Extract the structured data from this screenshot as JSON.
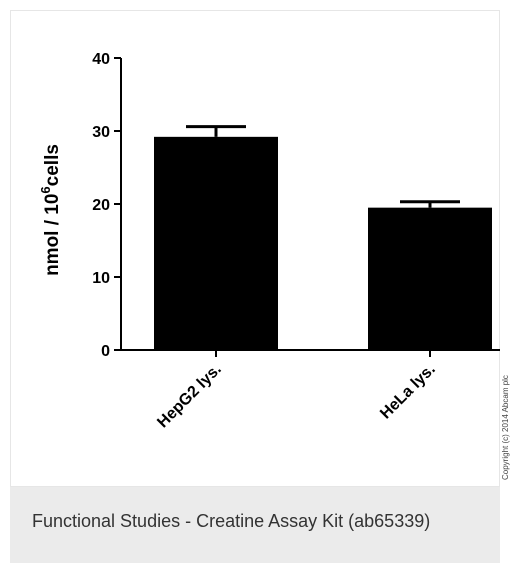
{
  "chart_data": {
    "type": "bar",
    "categories": [
      "HepG2 lys.",
      "HeLa lys."
    ],
    "values": [
      29.2,
      19.5
    ],
    "errors": [
      1.4,
      0.8
    ],
    "title": "",
    "xlabel": "",
    "ylabel": "nmol / 10",
    "ylabel_sup": "6",
    "ylabel_suffix": "cells",
    "ylim": [
      0,
      40
    ],
    "yticks": [
      0,
      10,
      20,
      30,
      40
    ],
    "grid": false,
    "colors": {
      "bar": "#000000",
      "axis": "#000000"
    }
  },
  "copyright": "Copyright (c) 2014 Abcam plc",
  "caption": "Functional Studies - Creatine Assay Kit (ab65339)"
}
